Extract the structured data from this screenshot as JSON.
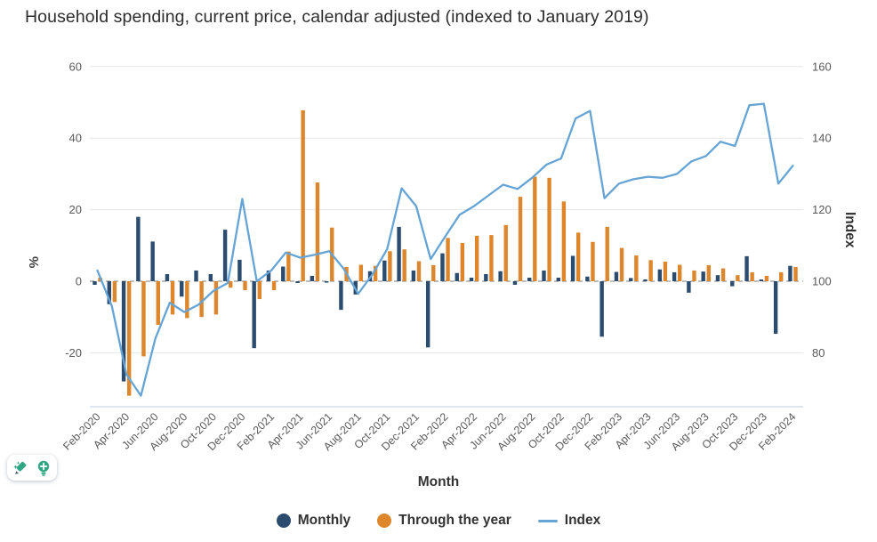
{
  "title": "Household spending, current price, calendar adjusted (indexed to January 2019)",
  "legend": {
    "monthly": "Monthly",
    "through_year": "Through the year",
    "index": "Index"
  },
  "badge": {
    "icons": [
      "pencil-sparkle-icon",
      "lightbulb-plus-icon"
    ],
    "icon_color": "#2fa784"
  },
  "chart_data": {
    "type": "combo",
    "title": "Household spending, current price, calendar adjusted (indexed to January 2019)",
    "xlabel": "Month",
    "ylabel_left": "%",
    "ylabel_right": "Index",
    "grid": true,
    "legend_position": "bottom",
    "axes": {
      "left": {
        "ticks": [
          60,
          40,
          20,
          0,
          -20
        ],
        "range_approx": [
          -36,
          62
        ]
      },
      "right": {
        "ticks": [
          160,
          140,
          120,
          100,
          80
        ],
        "range_approx": [
          64,
          162
        ]
      },
      "x": {
        "tick_labels": [
          "Feb-2020",
          "Apr-2020",
          "Jun-2020",
          "Aug-2020",
          "Oct-2020",
          "Dec-2020",
          "Feb-2021",
          "Apr-2021",
          "Jun-2021",
          "Aug-2021",
          "Oct-2021",
          "Dec-2021",
          "Feb-2022",
          "Apr-2022",
          "Jun-2022",
          "Aug-2022",
          "Oct-2022",
          "Dec-2022",
          "Feb-2023",
          "Apr-2023",
          "Jun-2023",
          "Aug-2023",
          "Oct-2023",
          "Dec-2023",
          "Feb-2024"
        ]
      }
    },
    "x": [
      "Feb-2020",
      "Mar-2020",
      "Apr-2020",
      "May-2020",
      "Jun-2020",
      "Jul-2020",
      "Aug-2020",
      "Sep-2020",
      "Oct-2020",
      "Nov-2020",
      "Dec-2020",
      "Jan-2021",
      "Feb-2021",
      "Mar-2021",
      "Apr-2021",
      "May-2021",
      "Jun-2021",
      "Jul-2021",
      "Aug-2021",
      "Sep-2021",
      "Oct-2021",
      "Nov-2021",
      "Dec-2021",
      "Jan-2022",
      "Feb-2022",
      "Mar-2022",
      "Apr-2022",
      "May-2022",
      "Jun-2022",
      "Jul-2022",
      "Aug-2022",
      "Sep-2022",
      "Oct-2022",
      "Nov-2022",
      "Dec-2022",
      "Jan-2023",
      "Feb-2023",
      "Mar-2023",
      "Apr-2023",
      "May-2023",
      "Jun-2023",
      "Jul-2023",
      "Aug-2023",
      "Sep-2023",
      "Oct-2023",
      "Nov-2023",
      "Dec-2023",
      "Jan-2024",
      "Feb-2024"
    ],
    "series": [
      {
        "name": "Monthly",
        "type": "bar",
        "axis": "left",
        "color": "#2b4c6f",
        "values": [
          -1,
          -6.4,
          -28,
          18,
          11.1,
          2,
          -4.3,
          3,
          2,
          14.4,
          6,
          -18.7,
          3,
          4.1,
          -0.5,
          1.5,
          -0.3,
          -8,
          -3.7,
          2.8,
          5.8,
          15.2,
          3,
          -18.5,
          7.8,
          2.3,
          1,
          2,
          2.8,
          -1,
          1,
          3,
          1,
          7.1,
          1.3,
          -15.5,
          2.6,
          0.9,
          0.5,
          3.3,
          2.5,
          -3.2,
          2.7,
          1.7,
          -1.4,
          7,
          0.5,
          -14.7,
          4.3
        ]
      },
      {
        "name": "Through the year",
        "type": "bar",
        "axis": "left",
        "color": "#dd862b",
        "values": [
          1,
          -5.8,
          -32,
          -21,
          -12.2,
          -9.3,
          -10.3,
          -10,
          -9.3,
          -1.8,
          -2.5,
          -5,
          -2.5,
          8.3,
          47.8,
          27.6,
          15,
          4,
          4.6,
          4.3,
          8.4,
          8.9,
          5.6,
          4.5,
          12.1,
          10.7,
          12.7,
          12.9,
          15.7,
          23.6,
          29.2,
          28.9,
          22.3,
          13.6,
          11,
          15.2,
          9.3,
          7.2,
          5.9,
          5.5,
          4.6,
          3,
          4.5,
          3.6,
          1.7,
          2.5,
          1.5,
          2.5,
          4
        ]
      },
      {
        "name": "Index",
        "type": "line",
        "axis": "right",
        "color": "#66a4d6",
        "values": [
          103,
          93,
          74,
          68,
          84,
          94,
          91.4,
          93.5,
          97.3,
          99.5,
          123,
          100,
          103,
          108,
          106.6,
          107.4,
          108.4,
          103.5,
          96.5,
          102,
          109,
          126,
          121,
          106.2,
          112.5,
          118.6,
          121,
          124,
          127,
          125.8,
          128.9,
          132.6,
          134.3,
          145.5,
          147.6,
          123.2,
          127.3,
          128.5,
          129.2,
          128.9,
          130,
          133.5,
          135,
          139,
          137.8,
          149.2,
          149.6,
          127.3,
          132.3
        ]
      }
    ]
  }
}
